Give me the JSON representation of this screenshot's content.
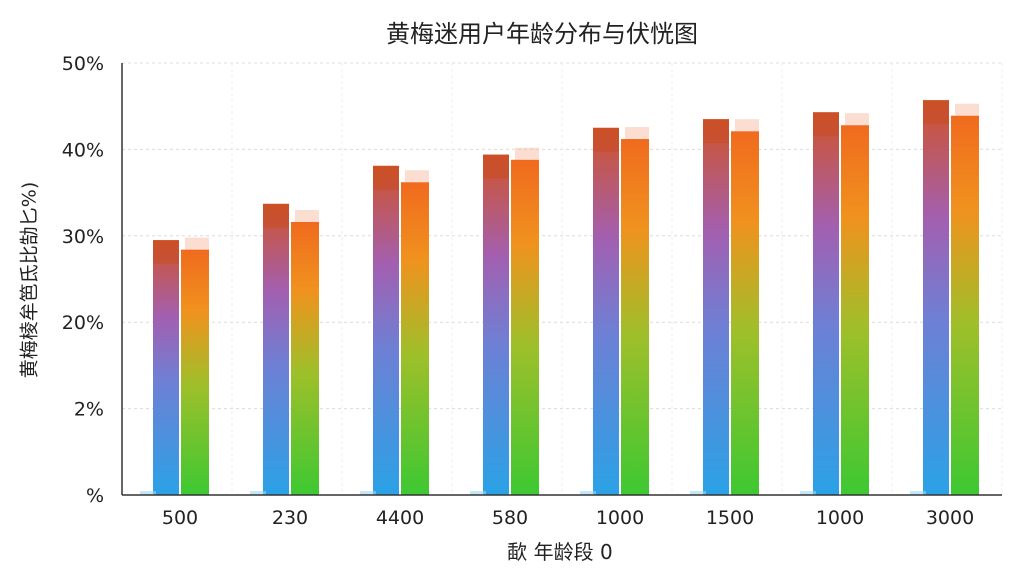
{
  "chart_data": {
    "type": "bar",
    "title": "黄梅迷用户年龄分布与伏恍图",
    "xlabel": "歃 年龄段 0",
    "ylabel": "黄梅棱牟笆氐比勂匕%)",
    "categories": [
      "500",
      "230",
      "4400",
      "580",
      "1000",
      "1500",
      "1000",
      "3000"
    ],
    "y_tick_labels": [
      "%",
      "2%",
      "20%",
      "30%",
      "40%",
      "50%"
    ],
    "ylim": [
      0,
      50
    ],
    "grid": true,
    "series": [
      {
        "values": [
          29.5,
          33.7,
          38.1,
          39.4,
          42.5,
          43.5,
          44.3,
          45.7
        ]
      },
      {
        "values": [
          28.4,
          31.6,
          36.2,
          38.8,
          41.2,
          42.1,
          42.8,
          43.9
        ]
      }
    ],
    "colors": {
      "series1_top": "#d0542a",
      "series1_mid": "#9b62b7",
      "series1_bottom": "#2f9fe0",
      "series2_top": "#f0761e",
      "series2_bottom": "#3dc832",
      "grid": "#dcdcdc"
    }
  }
}
